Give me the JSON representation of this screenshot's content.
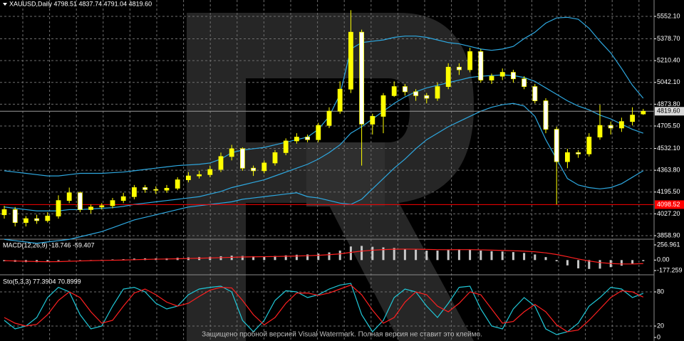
{
  "chart_data": [
    {
      "type": "candlestick",
      "header": "XAUUSD,Daily  4798.51 4837.74 4791.04 4819.60",
      "up_color": "#ffff00",
      "down_color": "#ffffff",
      "open": [
        4020,
        4060,
        3960,
        3990,
        3975,
        4010,
        4130,
        4190,
        4060,
        4080,
        4090,
        4130,
        4160,
        4230,
        4215,
        4210,
        4225,
        4290,
        4320,
        4330,
        4370,
        4470,
        4530,
        4380,
        4360,
        4420,
        4500,
        4590,
        4620,
        4600,
        4710,
        4820,
        4990,
        5430,
        4720,
        4780,
        4940,
        5010,
        4970,
        4940,
        4920,
        5010,
        5160,
        5140,
        5280,
        5060,
        5090,
        5120,
        5070,
        5010,
        4900,
        4680,
        4430,
        4500,
        4490,
        4620,
        4710,
        4690,
        4740,
        4798.51
      ],
      "high": [
        4090,
        4080,
        4010,
        4020,
        4040,
        4170,
        4230,
        4200,
        4100,
        4110,
        4150,
        4190,
        4250,
        4250,
        4240,
        4250,
        4310,
        4350,
        4360,
        4400,
        4500,
        4560,
        4540,
        4400,
        4440,
        4520,
        4610,
        4650,
        4640,
        4730,
        4850,
        5050,
        5600,
        5450,
        4800,
        4960,
        5050,
        5030,
        4990,
        4960,
        5040,
        5190,
        5190,
        5310,
        5300,
        5110,
        5150,
        5140,
        5090,
        5030,
        4920,
        4700,
        4530,
        4520,
        4650,
        4870,
        4740,
        4770,
        4850,
        4837.74
      ],
      "low": [
        3990,
        3930,
        3930,
        3950,
        3960,
        3990,
        4110,
        4040,
        4030,
        4060,
        4070,
        4110,
        4140,
        4190,
        4180,
        4190,
        4210,
        4270,
        4300,
        4310,
        4350,
        4440,
        4360,
        4320,
        4340,
        4400,
        4480,
        4570,
        4580,
        4580,
        4690,
        4800,
        4960,
        4400,
        4640,
        4650,
        4930,
        4940,
        4900,
        4880,
        4900,
        4990,
        5100,
        5120,
        5040,
        5030,
        5060,
        5040,
        4990,
        4880,
        4650,
        4100,
        4380,
        4460,
        4470,
        4600,
        4640,
        4660,
        4710,
        4791.04
      ],
      "close": [
        4060,
        3960,
        3990,
        3975,
        4010,
        4130,
        4190,
        4060,
        4080,
        4090,
        4130,
        4160,
        4230,
        4215,
        4210,
        4225,
        4290,
        4320,
        4330,
        4370,
        4470,
        4530,
        4380,
        4360,
        4420,
        4500,
        4590,
        4620,
        4600,
        4710,
        4820,
        4990,
        5430,
        4720,
        4780,
        4940,
        5010,
        4970,
        4940,
        4920,
        5010,
        5160,
        5140,
        5280,
        5060,
        5090,
        5120,
        5070,
        5010,
        4900,
        4680,
        4430,
        4500,
        4490,
        4620,
        4710,
        4690,
        4740,
        4790,
        4819.6
      ],
      "bands": [
        {
          "color": "#2ea8e0",
          "values": [
            4360,
            4350,
            4340,
            4330,
            4320,
            4320,
            4330,
            4340,
            4340,
            4340,
            4345,
            4350,
            4360,
            4370,
            4380,
            4390,
            4400,
            4405,
            4410,
            4420,
            4450,
            4500,
            4520,
            4530,
            4540,
            4560,
            4580,
            4600,
            4620,
            4680,
            4780,
            4950,
            5300,
            5350,
            5360,
            5370,
            5390,
            5400,
            5400,
            5390,
            5370,
            5350,
            5340,
            5320,
            5300,
            5290,
            5300,
            5320,
            5380,
            5430,
            5500,
            5540,
            5545,
            5530,
            5460,
            5360,
            5270,
            5150,
            5020,
            4920
          ]
        },
        {
          "color": "#2ea8e0",
          "values": [
            4080,
            4070,
            4060,
            4050,
            4050,
            4050,
            4060,
            4060,
            4065,
            4070,
            4075,
            4085,
            4100,
            4110,
            4120,
            4130,
            4140,
            4150,
            4160,
            4180,
            4200,
            4230,
            4250,
            4270,
            4290,
            4320,
            4350,
            4380,
            4410,
            4450,
            4500,
            4560,
            4650,
            4700,
            4760,
            4820,
            4880,
            4930,
            4970,
            5000,
            5020,
            5040,
            5060,
            5080,
            5090,
            5095,
            5100,
            5095,
            5080,
            5050,
            5000,
            4950,
            4900,
            4860,
            4830,
            4790,
            4760,
            4720,
            4680,
            4650
          ]
        },
        {
          "color": "#2ea8e0",
          "values": [
            3830,
            3820,
            3810,
            3800,
            3810,
            3820,
            3830,
            3850,
            3870,
            3890,
            3920,
            3950,
            3980,
            4000,
            4020,
            4040,
            4060,
            4080,
            4090,
            4100,
            4110,
            4120,
            4140,
            4150,
            4160,
            4170,
            4180,
            4190,
            4160,
            4150,
            4130,
            4110,
            4100,
            4140,
            4220,
            4300,
            4380,
            4450,
            4530,
            4600,
            4650,
            4700,
            4740,
            4780,
            4820,
            4850,
            4870,
            4880,
            4860,
            4780,
            4600,
            4450,
            4300,
            4250,
            4230,
            4220,
            4230,
            4260,
            4310,
            4360
          ]
        }
      ],
      "ylim": [
        3836.9,
        5678.6
      ],
      "yticks": [
        {
          "value": 5552.1,
          "label": "5552.10"
        },
        {
          "value": 5378.7,
          "label": "5378.70"
        },
        {
          "value": 5210.4,
          "label": "5210.40"
        },
        {
          "value": 5042.1,
          "label": "5042.10"
        },
        {
          "value": 4873.8,
          "label": "4873.80"
        },
        {
          "value": 4705.5,
          "label": "4705.50"
        },
        {
          "value": 4532.1,
          "label": "4532.10"
        },
        {
          "value": 4363.8,
          "label": "4363.80"
        },
        {
          "value": 4195.5,
          "label": "4195.50"
        },
        {
          "value": 4027.2,
          "label": "4027.20"
        },
        {
          "value": 3858.9,
          "label": "3858.90"
        }
      ],
      "current_price": {
        "value": 4819.6,
        "label": "4819.60"
      },
      "level_line": {
        "value": 4098.52,
        "color": "#ff0000"
      },
      "grid": true
    },
    {
      "type": "bar",
      "header": "MACD(12,26,9) -18.746 -59.407",
      "histogram": {
        "color": "#c8c8c8",
        "values": [
          -20,
          -30,
          -35,
          -35,
          -30,
          -15,
          5,
          0,
          0,
          5,
          10,
          15,
          25,
          30,
          30,
          30,
          40,
          45,
          50,
          55,
          65,
          75,
          70,
          65,
          65,
          70,
          80,
          90,
          95,
          110,
          130,
          160,
          230,
          240,
          225,
          215,
          205,
          190,
          175,
          160,
          160,
          170,
          180,
          175,
          160,
          150,
          145,
          135,
          120,
          95,
          50,
          -20,
          -90,
          -140,
          -150,
          -145,
          -120,
          -95,
          -60,
          -18.746
        ]
      },
      "signal": {
        "color": "#ff2020",
        "values": [
          -10,
          -15,
          -20,
          -25,
          -28,
          -26,
          -20,
          -15,
          -10,
          -6,
          -3,
          1,
          6,
          11,
          15,
          18,
          22,
          27,
          31,
          36,
          41,
          47,
          52,
          55,
          57,
          60,
          64,
          69,
          74,
          81,
          91,
          105,
          130,
          152,
          167,
          177,
          183,
          185,
          184,
          180,
          176,
          175,
          176,
          176,
          173,
          168,
          163,
          158,
          151,
          140,
          122,
          94,
          57,
          18,
          -16,
          -42,
          -58,
          -66,
          -66,
          -59.407
        ]
      },
      "ylim": [
        -237,
        329
      ],
      "yticks": [
        256.961,
        {
          "value": 0,
          "label": "0.00"
        },
        -177.259
      ]
    },
    {
      "type": "line",
      "header": "Sto(5,3,3) 77.3904 70.8999",
      "series": [
        {
          "color": "#20c8d8",
          "values": [
            30,
            15,
            20,
            35,
            70,
            88,
            80,
            40,
            15,
            20,
            55,
            85,
            88,
            80,
            60,
            50,
            55,
            75,
            85,
            88,
            90,
            80,
            30,
            10,
            30,
            65,
            82,
            80,
            70,
            75,
            85,
            92,
            95,
            40,
            10,
            30,
            70,
            85,
            80,
            55,
            35,
            60,
            88,
            90,
            50,
            20,
            15,
            50,
            70,
            55,
            15,
            5,
            10,
            25,
            55,
            70,
            88,
            85,
            70,
            77.3904
          ]
        },
        {
          "color": "#ff2020",
          "values": [
            35,
            25,
            20,
            23,
            40,
            65,
            80,
            70,
            45,
            25,
            30,
            55,
            78,
            85,
            75,
            62,
            55,
            60,
            72,
            83,
            88,
            87,
            65,
            40,
            22,
            35,
            60,
            78,
            78,
            74,
            78,
            85,
            92,
            75,
            48,
            25,
            35,
            62,
            80,
            75,
            55,
            45,
            60,
            80,
            75,
            50,
            25,
            28,
            45,
            58,
            45,
            22,
            10,
            13,
            30,
            50,
            70,
            82,
            80,
            70.8999
          ]
        }
      ],
      "ylim": [
        -5,
        105
      ],
      "yticks": [
        80,
        20,
        0
      ]
    }
  ],
  "watermark": "Защищено пробной версией Visual Watermark. Полная версия не ставит это клеймо."
}
